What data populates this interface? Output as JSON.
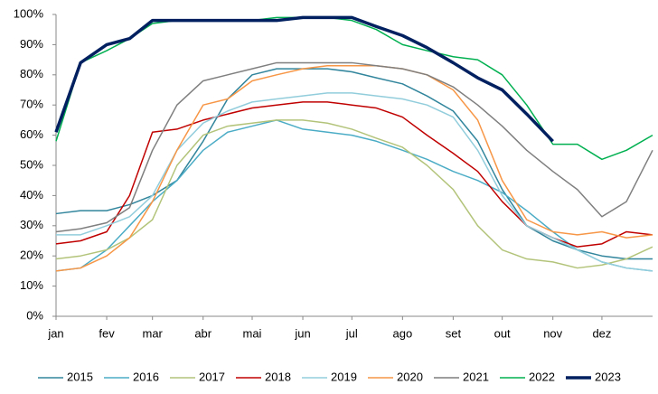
{
  "chart_data": {
    "type": "line",
    "x": [
      0,
      15,
      31,
      45,
      59,
      74,
      90,
      105,
      120,
      135,
      151,
      166,
      181,
      196,
      212,
      227,
      243,
      258,
      273,
      288,
      304,
      319,
      334,
      349,
      365
    ],
    "xlim": [
      0,
      365
    ],
    "xticks": [
      {
        "value": 0,
        "label": "jan"
      },
      {
        "value": 31,
        "label": "fev"
      },
      {
        "value": 59,
        "label": "mar"
      },
      {
        "value": 90,
        "label": "abr"
      },
      {
        "value": 120,
        "label": "mai"
      },
      {
        "value": 151,
        "label": "jun"
      },
      {
        "value": 181,
        "label": "jul"
      },
      {
        "value": 212,
        "label": "ago"
      },
      {
        "value": 243,
        "label": "set"
      },
      {
        "value": 273,
        "label": "out"
      },
      {
        "value": 304,
        "label": "nov"
      },
      {
        "value": 334,
        "label": "dez"
      }
    ],
    "ylim": [
      0,
      100
    ],
    "yticks": [
      {
        "value": 0,
        "label": "0%"
      },
      {
        "value": 10,
        "label": "10%"
      },
      {
        "value": 20,
        "label": "20%"
      },
      {
        "value": 30,
        "label": "30%"
      },
      {
        "value": 40,
        "label": "40%"
      },
      {
        "value": 50,
        "label": "50%"
      },
      {
        "value": 60,
        "label": "60%"
      },
      {
        "value": 70,
        "label": "70%"
      },
      {
        "value": 80,
        "label": "80%"
      },
      {
        "value": 90,
        "label": "90%"
      },
      {
        "value": 100,
        "label": "100%"
      }
    ],
    "series": [
      {
        "name": "2015",
        "color": "#31859c",
        "width": 1.5,
        "values": [
          34,
          35,
          35,
          37,
          40,
          45,
          58,
          72,
          80,
          82,
          82,
          82,
          81,
          79,
          77,
          73,
          68,
          58,
          42,
          30,
          25,
          22,
          20,
          19,
          19
        ]
      },
      {
        "name": "2016",
        "color": "#4bacc6",
        "width": 1.5,
        "values": [
          15,
          16,
          22,
          30,
          38,
          45,
          55,
          61,
          63,
          65,
          62,
          61,
          60,
          58,
          55,
          52,
          48,
          45,
          41,
          35,
          28,
          22,
          18,
          16,
          15
        ]
      },
      {
        "name": "2017",
        "color": "#b3c47a",
        "width": 1.5,
        "values": [
          19,
          20,
          22,
          26,
          32,
          50,
          60,
          63,
          64,
          65,
          65,
          64,
          62,
          59,
          56,
          50,
          42,
          30,
          22,
          19,
          18,
          16,
          17,
          19,
          23
        ]
      },
      {
        "name": "2018",
        "color": "#c00000",
        "width": 1.5,
        "values": [
          24,
          25,
          28,
          40,
          61,
          62,
          65,
          67,
          69,
          70,
          71,
          71,
          70,
          69,
          66,
          60,
          54,
          48,
          38,
          30,
          26,
          23,
          24,
          28,
          27
        ]
      },
      {
        "name": "2019",
        "color": "#92cddc",
        "width": 1.5,
        "values": [
          27,
          27,
          30,
          33,
          40,
          55,
          64,
          68,
          71,
          72,
          73,
          74,
          74,
          73,
          72,
          70,
          66,
          55,
          40,
          30,
          26,
          22,
          18,
          16,
          15
        ]
      },
      {
        "name": "2020",
        "color": "#f79646",
        "width": 1.5,
        "values": [
          15,
          16,
          20,
          26,
          38,
          55,
          70,
          72,
          78,
          80,
          82,
          83,
          83,
          83,
          82,
          80,
          75,
          65,
          45,
          32,
          28,
          27,
          28,
          26,
          27
        ]
      },
      {
        "name": "2021",
        "color": "#7f7f7f",
        "width": 1.5,
        "values": [
          28,
          29,
          31,
          36,
          55,
          70,
          78,
          80,
          82,
          84,
          84,
          84,
          84,
          83,
          82,
          80,
          76,
          70,
          63,
          55,
          48,
          42,
          33,
          38,
          55
        ]
      },
      {
        "name": "2022",
        "color": "#00b050",
        "width": 1.5,
        "values": [
          58,
          84,
          88,
          92,
          97,
          98,
          98,
          98,
          98,
          99,
          99,
          99,
          98,
          95,
          90,
          88,
          86,
          85,
          80,
          70,
          57,
          57,
          52,
          55,
          60
        ]
      },
      {
        "name": "2023",
        "color": "#002060",
        "width": 3.5,
        "values": [
          61,
          84,
          90,
          92,
          98,
          98,
          98,
          98,
          98,
          98,
          99,
          99,
          99,
          96,
          93,
          89,
          84,
          79,
          75,
          67,
          58,
          null,
          null,
          null,
          null
        ]
      }
    ]
  }
}
